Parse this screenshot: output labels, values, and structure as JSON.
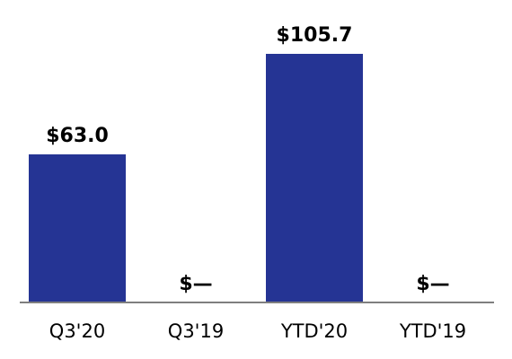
{
  "chart_data": {
    "type": "bar",
    "categories": [
      "Q3'20",
      "Q3'19",
      "YTD'20",
      "YTD'19"
    ],
    "values": [
      63.0,
      0,
      105.7,
      0
    ],
    "value_labels": [
      "$63.0",
      "$—",
      "$105.7",
      "$—"
    ],
    "title": "",
    "xlabel": "",
    "ylabel": "",
    "ylim": [
      0,
      110
    ],
    "grid": false,
    "legend": "none",
    "colors": {
      "bar": "#253494",
      "axis": "#7f7f7f",
      "text": "#000000"
    }
  }
}
